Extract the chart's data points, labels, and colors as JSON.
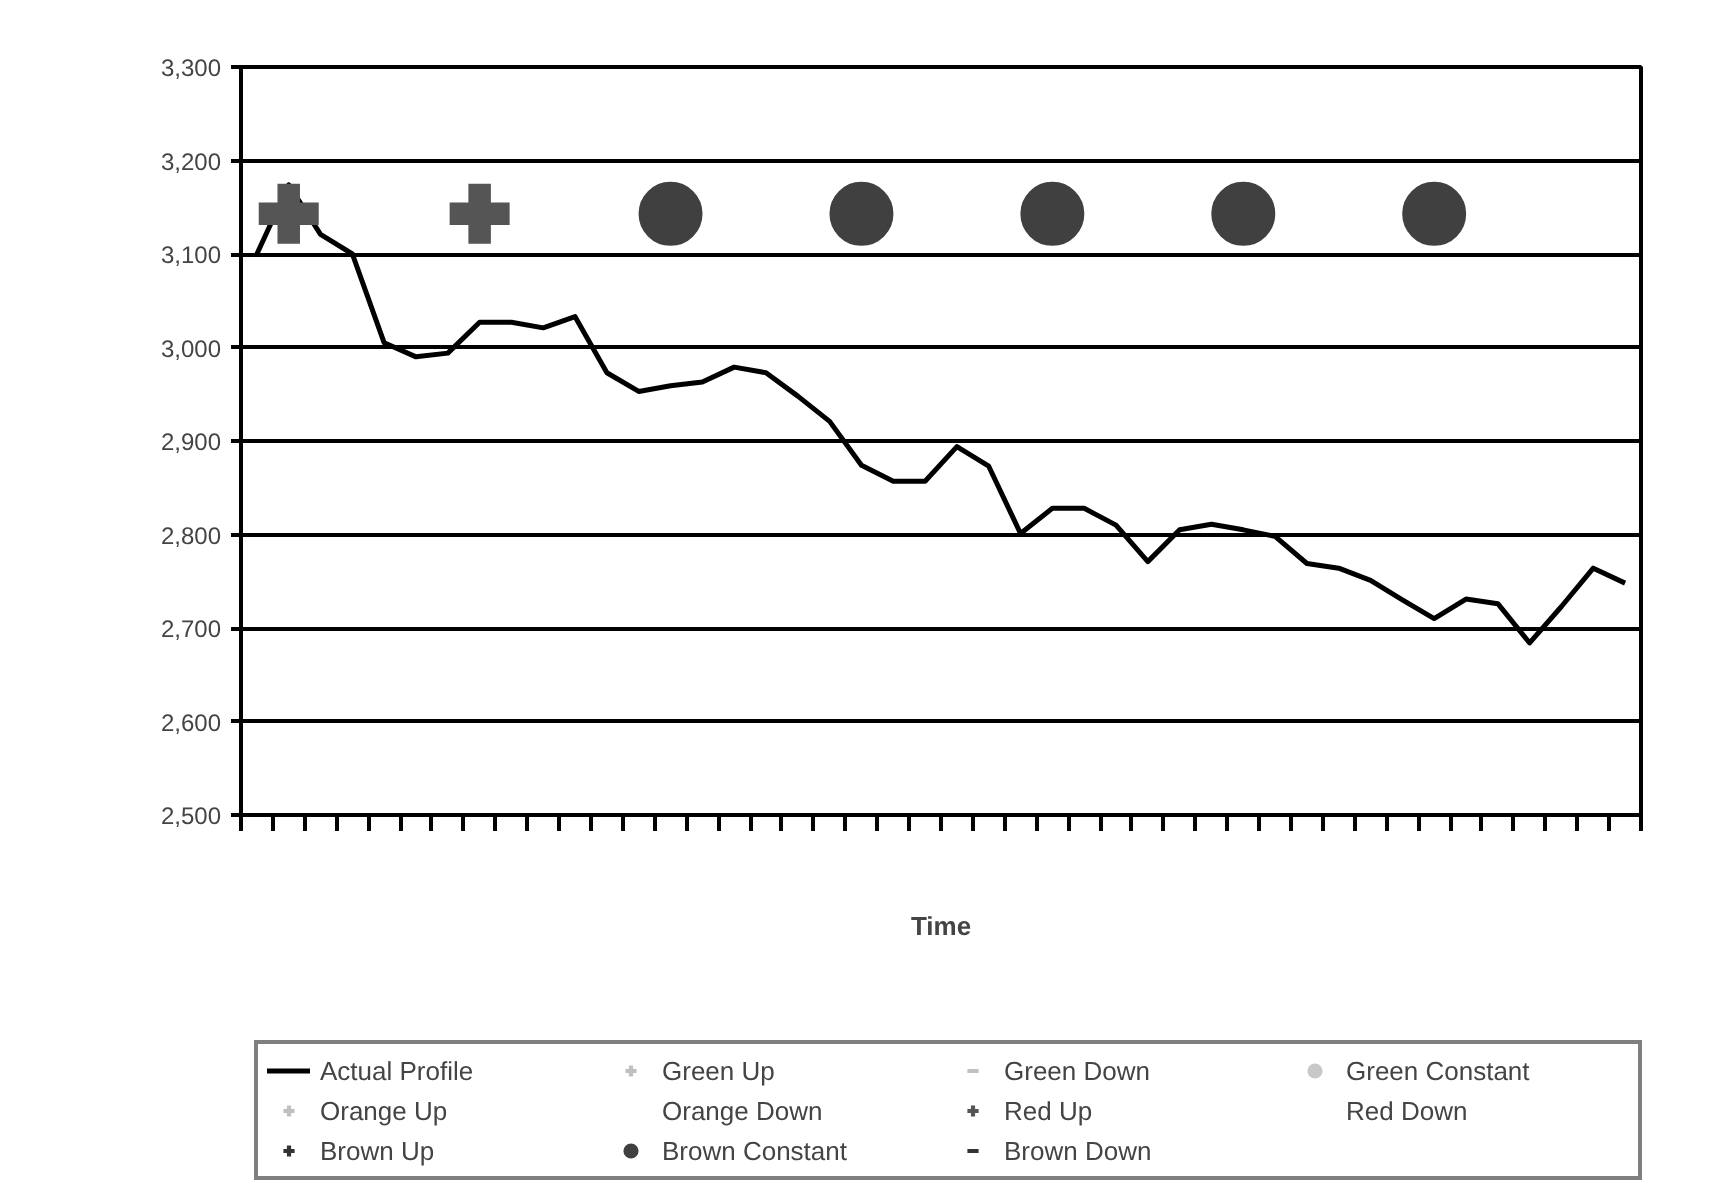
{
  "chart_data": {
    "type": "line",
    "xlabel": "Time",
    "categories": [
      null,
      null,
      null,
      null,
      null,
      null,
      null,
      null,
      null,
      null,
      null,
      null,
      null,
      null,
      null,
      null,
      null,
      null,
      null,
      null,
      null,
      null,
      null,
      null,
      null,
      null,
      null,
      null,
      null,
      null,
      null,
      null,
      null,
      null,
      null,
      null,
      null,
      null,
      null,
      null,
      null,
      null,
      null,
      null
    ],
    "ylim": [
      2500,
      3300
    ],
    "yticks": [
      {
        "value": 2500,
        "label": "2,500"
      },
      {
        "value": 2600,
        "label": "2,600"
      },
      {
        "value": 2700,
        "label": "2,700"
      },
      {
        "value": 2800,
        "label": "2,800"
      },
      {
        "value": 2900,
        "label": "2,900"
      },
      {
        "value": 3000,
        "label": "3,000"
      },
      {
        "value": 3100,
        "label": "3,100"
      },
      {
        "value": 3200,
        "label": "3,200"
      },
      {
        "value": 3300,
        "label": "3,300"
      }
    ],
    "grid": "y",
    "legend": "bottom",
    "tick_labels": "y",
    "series": [
      {
        "name": "Actual Profile",
        "marker": "none",
        "color": "#000000",
        "values": [
          3100,
          3174,
          3121,
          3100,
          3005,
          2990,
          2994,
          3027,
          3027,
          3021,
          3033,
          2973,
          2953,
          2959,
          2963,
          2979,
          2973,
          2948,
          2921,
          2874,
          2857,
          2857,
          2894,
          2873,
          2801,
          2828,
          2828,
          2810,
          2771,
          2805,
          2811,
          2805,
          2798,
          2769,
          2764,
          2751,
          2730,
          2710,
          2731,
          2726,
          2684,
          2723,
          2764,
          2748
        ]
      },
      {
        "name": "Green Up",
        "type": "scatter",
        "marker": "cross",
        "color": "#c0c0c0",
        "values": [
          null,
          null,
          null,
          null,
          null,
          null,
          null,
          null,
          null,
          null,
          null,
          null,
          null,
          null,
          null,
          null,
          null,
          null,
          null,
          null,
          null,
          null,
          null,
          null,
          null,
          null,
          null,
          null,
          null,
          null,
          null,
          null,
          null,
          null,
          null,
          null,
          null,
          null,
          null,
          null,
          null,
          null,
          null,
          null
        ]
      },
      {
        "name": "Green Down",
        "type": "scatter",
        "marker": "dash",
        "color": "#c0c0c0",
        "values": [
          null,
          null,
          null,
          null,
          null,
          null,
          null,
          null,
          null,
          null,
          null,
          null,
          null,
          null,
          null,
          null,
          null,
          null,
          null,
          null,
          null,
          null,
          null,
          null,
          null,
          null,
          null,
          null,
          null,
          null,
          null,
          null,
          null,
          null,
          null,
          null,
          null,
          null,
          null,
          null,
          null,
          null,
          null,
          null
        ]
      },
      {
        "name": "Green Constant",
        "type": "scatter",
        "marker": "circle",
        "color": "#c8c8c8",
        "values": [
          null,
          null,
          null,
          null,
          null,
          null,
          null,
          null,
          null,
          null,
          null,
          null,
          null,
          null,
          null,
          null,
          null,
          null,
          null,
          null,
          null,
          null,
          null,
          null,
          null,
          null,
          null,
          null,
          null,
          null,
          null,
          null,
          null,
          null,
          null,
          null,
          null,
          null,
          null,
          null,
          null,
          null,
          null,
          null
        ]
      },
      {
        "name": "Orange Up",
        "type": "scatter",
        "marker": "cross",
        "color": "#c0c0c0",
        "values": [
          null,
          null,
          null,
          null,
          null,
          null,
          null,
          null,
          null,
          null,
          null,
          null,
          null,
          null,
          null,
          null,
          null,
          null,
          null,
          null,
          null,
          null,
          null,
          null,
          null,
          null,
          null,
          null,
          null,
          null,
          null,
          null,
          null,
          null,
          null,
          null,
          null,
          null,
          null,
          null,
          null,
          null,
          null,
          null
        ]
      },
      {
        "name": "Orange Down",
        "type": "scatter",
        "marker": "none",
        "values": [
          null,
          null,
          null,
          null,
          null,
          null,
          null,
          null,
          null,
          null,
          null,
          null,
          null,
          null,
          null,
          null,
          null,
          null,
          null,
          null,
          null,
          null,
          null,
          null,
          null,
          null,
          null,
          null,
          null,
          null,
          null,
          null,
          null,
          null,
          null,
          null,
          null,
          null,
          null,
          null,
          null,
          null,
          null,
          null
        ]
      },
      {
        "name": "Red Up",
        "type": "scatter",
        "marker": "cross",
        "color": "#555555",
        "values": [
          null,
          3143,
          null,
          null,
          null,
          null,
          null,
          3143,
          null,
          null,
          null,
          null,
          null,
          null,
          null,
          null,
          null,
          null,
          null,
          null,
          null,
          null,
          null,
          null,
          null,
          null,
          null,
          null,
          null,
          null,
          null,
          null,
          null,
          null,
          null,
          null,
          null,
          null,
          null,
          null,
          null,
          null,
          null,
          null
        ]
      },
      {
        "name": "Red Down",
        "type": "scatter",
        "marker": "none",
        "values": [
          null,
          null,
          null,
          null,
          null,
          null,
          null,
          null,
          null,
          null,
          null,
          null,
          null,
          null,
          null,
          null,
          null,
          null,
          null,
          null,
          null,
          null,
          null,
          null,
          null,
          null,
          null,
          null,
          null,
          null,
          null,
          null,
          null,
          null,
          null,
          null,
          null,
          null,
          null,
          null,
          null,
          null,
          null,
          null
        ]
      },
      {
        "name": "Brown Up",
        "type": "scatter",
        "marker": "cross",
        "color": "#333333",
        "values": [
          null,
          null,
          null,
          null,
          null,
          null,
          null,
          null,
          null,
          null,
          null,
          null,
          null,
          null,
          null,
          null,
          null,
          null,
          null,
          null,
          null,
          null,
          null,
          null,
          null,
          null,
          null,
          null,
          null,
          null,
          null,
          null,
          null,
          null,
          null,
          null,
          null,
          null,
          null,
          null,
          null,
          null,
          null,
          null
        ]
      },
      {
        "name": "Brown Constant",
        "type": "scatter",
        "marker": "circle",
        "color": "#404040",
        "values": [
          null,
          null,
          null,
          null,
          null,
          null,
          null,
          null,
          null,
          null,
          null,
          null,
          null,
          3143,
          null,
          null,
          null,
          null,
          null,
          3143,
          null,
          null,
          null,
          null,
          null,
          3143,
          null,
          null,
          null,
          null,
          null,
          3143,
          null,
          null,
          null,
          null,
          null,
          3143,
          null,
          null,
          null,
          null,
          null,
          null
        ]
      },
      {
        "name": "Brown Down",
        "type": "scatter",
        "marker": "dash",
        "color": "#333333",
        "values": [
          null,
          null,
          null,
          null,
          null,
          null,
          null,
          null,
          null,
          null,
          null,
          null,
          null,
          null,
          null,
          null,
          null,
          null,
          null,
          null,
          null,
          null,
          null,
          null,
          null,
          null,
          null,
          null,
          null,
          null,
          null,
          null,
          null,
          null,
          null,
          null,
          null,
          null,
          null,
          null,
          null,
          null,
          null,
          null
        ]
      }
    ]
  }
}
